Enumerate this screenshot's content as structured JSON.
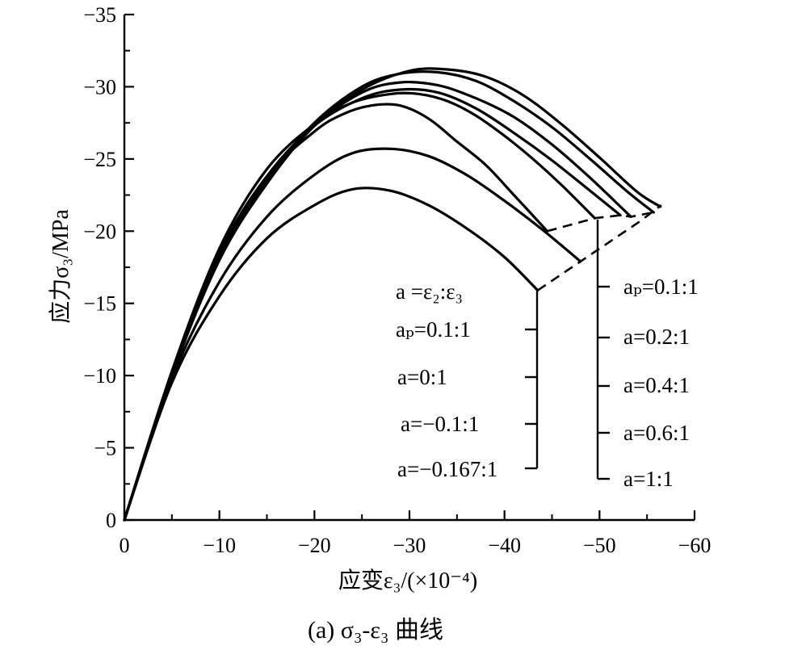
{
  "chart_data": {
    "type": "line",
    "caption": "(a)  σ₃-ε₃ 曲线",
    "xlabel": "应变ε₃/(×10⁻⁴)",
    "ylabel": "应力σ₃/MPa",
    "xlim": [
      0,
      -60
    ],
    "ylim": [
      0,
      -35
    ],
    "xticks": [
      0,
      -10,
      -20,
      -30,
      -40,
      -50,
      -60
    ],
    "yticks": [
      0,
      -5,
      -10,
      -15,
      -20,
      -25,
      -30,
      -35
    ],
    "xtick_labels": [
      "0",
      "−10",
      "−20",
      "−30",
      "−40",
      "−50",
      "−60"
    ],
    "ytick_labels": [
      "0",
      "−5",
      "−10",
      "−15",
      "−20",
      "−25",
      "−30",
      "−35"
    ],
    "legend_title": "a =ε₂:ε₃",
    "legend_left": [
      "aₚ=0.1:1",
      "a=0:1",
      "a=−0.1:1",
      "a=−0.167:1"
    ],
    "legend_right": [
      "aₚ=0.1:1",
      "a=0.2:1",
      "a=0.4:1",
      "a=0.6:1",
      "a=1:1"
    ],
    "series": [
      {
        "name": "a=−0.167:1",
        "x": [
          0,
          -5,
          -10,
          -15,
          -20,
          -24,
          -28,
          -32,
          -36,
          -40,
          -43.5
        ],
        "y": [
          0,
          -9.5,
          -15.5,
          -19.5,
          -21.8,
          -22.9,
          -22.8,
          -21.8,
          -20.2,
          -18.2,
          -15.9
        ]
      },
      {
        "name": "a=−0.1:1",
        "x": [
          0,
          -5,
          -10,
          -15,
          -20,
          -24,
          -28,
          -32,
          -36,
          -40,
          -44,
          -48
        ],
        "y": [
          0,
          -9.8,
          -16.5,
          -21,
          -23.9,
          -25.4,
          -25.7,
          -25.2,
          -23.9,
          -22.1,
          -20.1,
          -17.9
        ]
      },
      {
        "name": "a=0:1",
        "x": [
          0,
          -5,
          -10,
          -15,
          -20,
          -23,
          -26,
          -29,
          -32,
          -35,
          -38,
          -41,
          -44.5
        ],
        "y": [
          0,
          -10.2,
          -18.5,
          -23.8,
          -26.9,
          -28.1,
          -28.7,
          -28.7,
          -27.8,
          -26.2,
          -24.6,
          -22.5,
          -20.0
        ]
      },
      {
        "name": "aₚ=0.1:1",
        "x": [
          0,
          -5,
          -10,
          -15,
          -20,
          -24,
          -28,
          -31,
          -34,
          -37,
          -40,
          -43,
          -46,
          -49.5
        ],
        "y": [
          0,
          -10.3,
          -18.8,
          -24.3,
          -27.4,
          -28.9,
          -29.5,
          -29.5,
          -29.0,
          -28.0,
          -26.6,
          -25.0,
          -23.2,
          -20.9
        ]
      },
      {
        "name": "a=0.2:1",
        "x": [
          0,
          -5,
          -10,
          -15,
          -20,
          -25,
          -29,
          -33,
          -37,
          -41,
          -45,
          -49,
          -52.2
        ],
        "y": [
          0,
          -10.2,
          -18.5,
          -23.8,
          -27.3,
          -29.2,
          -29.8,
          -29.6,
          -28.5,
          -26.8,
          -24.9,
          -22.8,
          -21.1
        ]
      },
      {
        "name": "a=0.4:1",
        "x": [
          0,
          -5,
          -10,
          -15,
          -20,
          -25,
          -29,
          -33,
          -37,
          -41,
          -45,
          -49,
          -53.3
        ],
        "y": [
          0,
          -10.1,
          -18.3,
          -23.6,
          -27.3,
          -29.6,
          -30.3,
          -30.1,
          -29.2,
          -27.9,
          -26.0,
          -23.7,
          -21.0
        ]
      },
      {
        "name": "a=0.6:1",
        "x": [
          0,
          -5,
          -10,
          -15,
          -20,
          -25,
          -29,
          -33,
          -37,
          -41,
          -45,
          -49,
          -53,
          -55.7
        ],
        "y": [
          0,
          -10.0,
          -18.2,
          -23.6,
          -27.5,
          -30.0,
          -30.9,
          -31.0,
          -30.4,
          -29.0,
          -27.2,
          -25.0,
          -22.7,
          -21.3
        ]
      },
      {
        "name": "a=1:1",
        "x": [
          0,
          -5,
          -10,
          -15,
          -20,
          -25,
          -30,
          -34,
          -38,
          -42,
          -46,
          -50,
          -54,
          -56.4
        ],
        "y": [
          0,
          -10.0,
          -18.0,
          -23.3,
          -27.3,
          -29.8,
          -31.1,
          -31.2,
          -30.7,
          -29.4,
          -27.4,
          -25.1,
          -22.7,
          -21.7
        ]
      }
    ],
    "dashed_connectors": [
      {
        "x": [
          -43.5,
          -48,
          -54.3,
          -56.5
        ],
        "y": [
          -15.9,
          -17.9,
          -20.7,
          -21.8
        ]
      },
      {
        "x": [
          -44.5,
          -49.5,
          -52.2,
          -53.3,
          -55.7
        ],
        "y": [
          -20.0,
          -20.9,
          -21.1,
          -21.0,
          -21.3
        ]
      }
    ]
  }
}
